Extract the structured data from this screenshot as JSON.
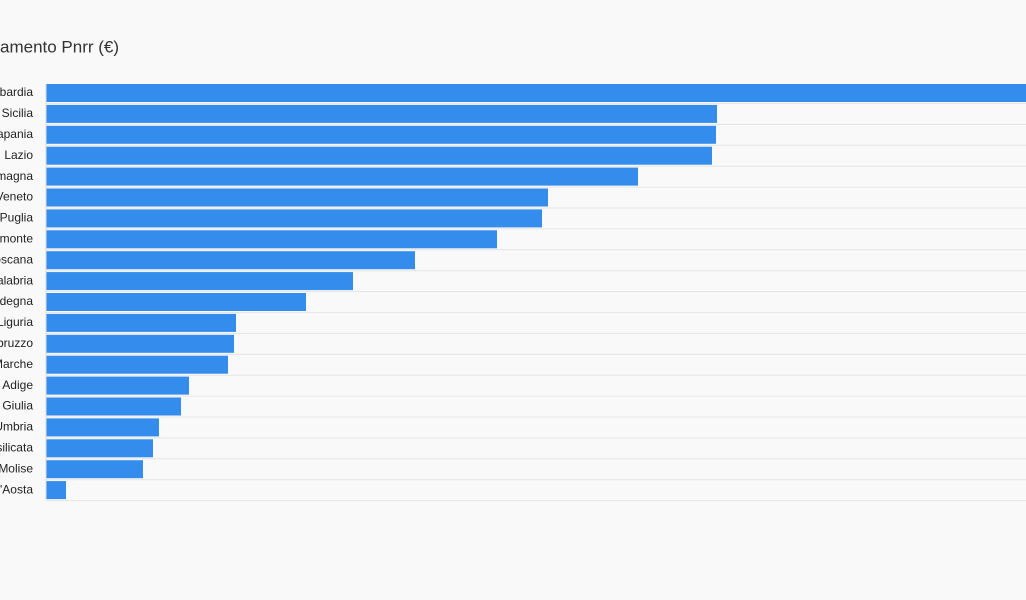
{
  "chart_data": {
    "type": "bar",
    "orientation": "horizontal",
    "title": "amento Pnrr (€)",
    "categories": [
      "bardia",
      "Sicilia",
      "apania",
      "Lazio",
      "magna",
      "Veneto",
      "Puglia",
      "monte",
      "oscana",
      "alabria",
      "degna",
      "Liguria",
      "bruzzo",
      "Marche",
      "Adige",
      "Giulia",
      "Umbria",
      "silicata",
      "Molise",
      "'Aosta"
    ],
    "values": [
      980,
      671,
      670,
      666,
      592,
      502,
      496,
      451,
      369,
      307,
      260,
      190,
      188,
      182,
      143,
      135,
      113,
      107,
      97,
      20
    ],
    "xlim": [
      0,
      980
    ],
    "color": "#348ced",
    "grid": true
  }
}
